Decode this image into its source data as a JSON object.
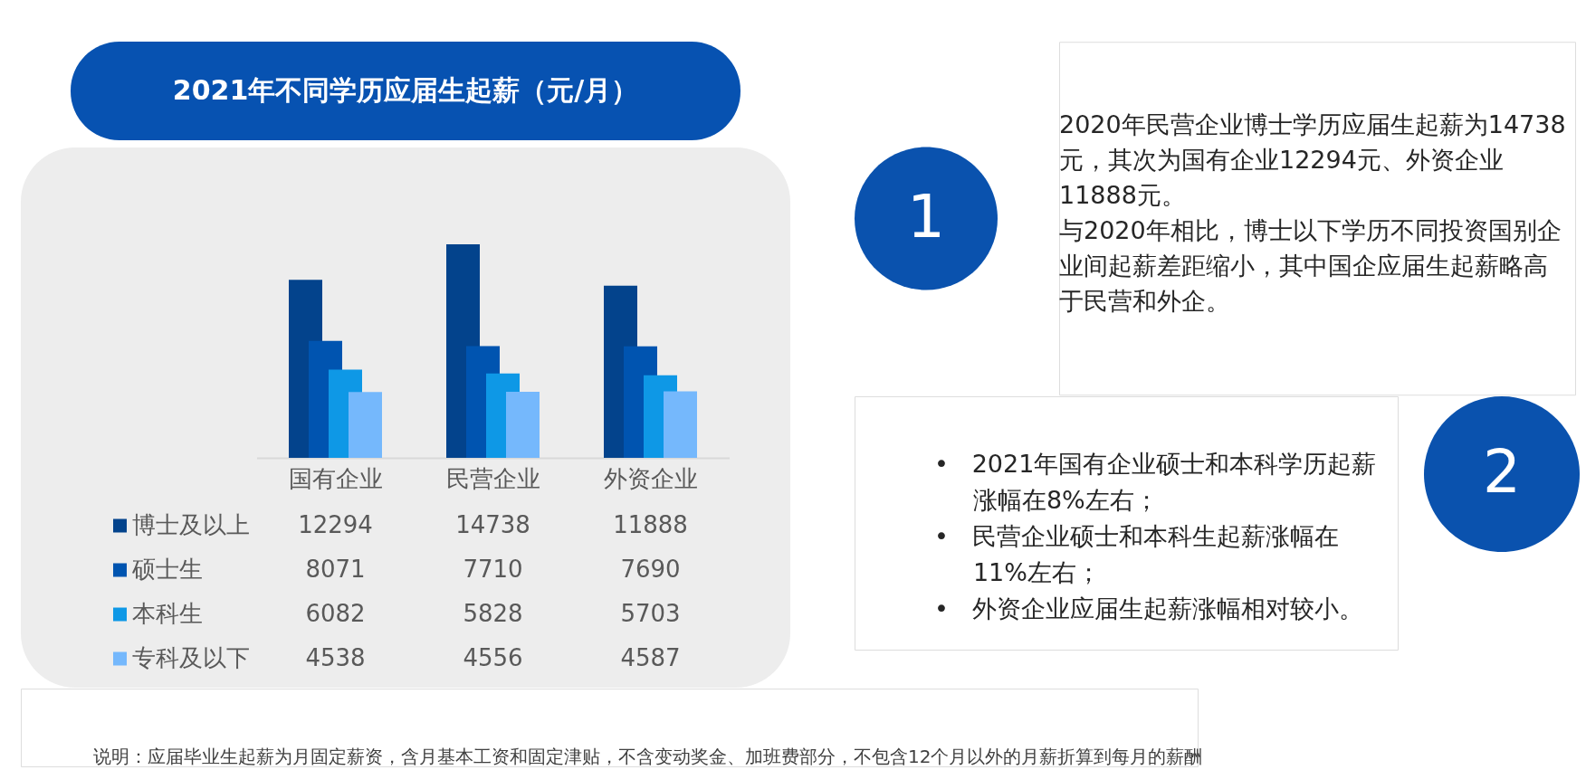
{
  "chart_data": {
    "type": "bar",
    "title": "2021年不同学历应届生起薪（元/月）",
    "categories": [
      "国有企业",
      "民营企业",
      "外资企业"
    ],
    "series": [
      {
        "name": "博士及以上",
        "color": "#03438c",
        "values": [
          12294,
          14738,
          11888
        ]
      },
      {
        "name": "硕士生",
        "color": "#0054b0",
        "values": [
          8071,
          7710,
          7690
        ]
      },
      {
        "name": "本科生",
        "color": "#0e98e6",
        "values": [
          6082,
          5828,
          5703
        ]
      },
      {
        "name": "专科及以下",
        "color": "#75b8fc",
        "values": [
          4538,
          4556,
          4587
        ]
      }
    ],
    "data_labels": true,
    "legend": "bottom",
    "annotations": [
      "1",
      "2020年民营企业博士学历应届生起薪为14738元，其次为国有企业12294元、外资企业11888元。",
      "与2020年相比，博士以下学历不同投资国别企业间起薪差距缩小，其中国企应届生起薪略高于民营和外企。",
      "2",
      "• 2021年国有企业硕士和本科学历起薪涨幅在8%左右；",
      "• 民营企业硕士和本科生起薪涨幅在11%左右；",
      "• 外资企业应届生起薪涨幅相对较小。",
      "说明：应届毕业生起薪为月固定薪资，含月基本工资和固定津贴，不含变动奖金、加班费部分，不包含12个月以外的月薪折算到每月的薪酬"
    ]
  }
}
